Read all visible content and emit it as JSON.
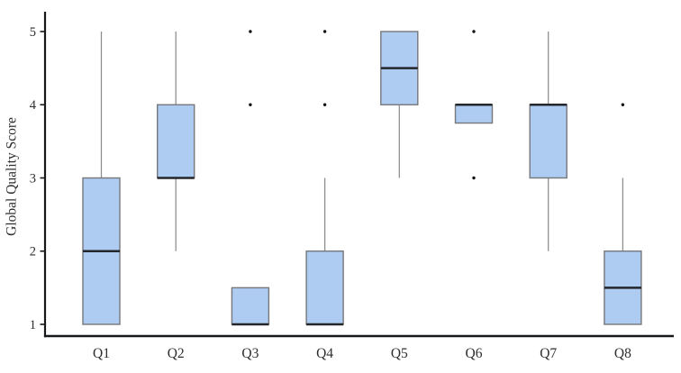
{
  "figure": {
    "y_axis_title": "Global Quality Score"
  },
  "chart_data": {
    "type": "boxplot",
    "title": "",
    "xlabel": "",
    "ylabel": "Global Quality Score",
    "categories": [
      "Q1",
      "Q2",
      "Q3",
      "Q4",
      "Q5",
      "Q6",
      "Q7",
      "Q8"
    ],
    "y_ticks": [
      1,
      2,
      3,
      4,
      5
    ],
    "ylim": [
      0.85,
      5.1
    ],
    "grid": false,
    "legend": "none",
    "series": [
      {
        "category": "Q1",
        "low": 1,
        "q1": 1,
        "median": 2,
        "q3": 3,
        "high": 5,
        "outliers": []
      },
      {
        "category": "Q2",
        "low": 2,
        "q1": 3,
        "median": 3,
        "q3": 4,
        "high": 5,
        "outliers": []
      },
      {
        "category": "Q3",
        "low": 1,
        "q1": 1,
        "median": 1,
        "q3": 1.5,
        "high": 1.5,
        "outliers": [
          4,
          5
        ]
      },
      {
        "category": "Q4",
        "low": 1,
        "q1": 1,
        "median": 1,
        "q3": 2,
        "high": 3,
        "outliers": [
          4,
          5
        ]
      },
      {
        "category": "Q5",
        "low": 3,
        "q1": 4,
        "median": 4.5,
        "q3": 5,
        "high": 5,
        "outliers": []
      },
      {
        "category": "Q6",
        "low": 3.75,
        "q1": 3.75,
        "median": 4,
        "q3": 4,
        "high": 4,
        "outliers": [
          3,
          5
        ]
      },
      {
        "category": "Q7",
        "low": 2,
        "q1": 3,
        "median": 4,
        "q3": 4,
        "high": 5,
        "outliers": []
      },
      {
        "category": "Q8",
        "low": 1,
        "q1": 1,
        "median": 1.5,
        "q3": 2,
        "high": 3,
        "outliers": [
          4
        ]
      }
    ],
    "style": {
      "box_fill": "#aecbf1",
      "box_stroke": "#75777b",
      "median_color": "#23262b",
      "whisker_color": "#8c8c8c",
      "outlier_color": "#141414",
      "axis_color": "#17181a",
      "label_color": "#2e2e2e"
    }
  }
}
